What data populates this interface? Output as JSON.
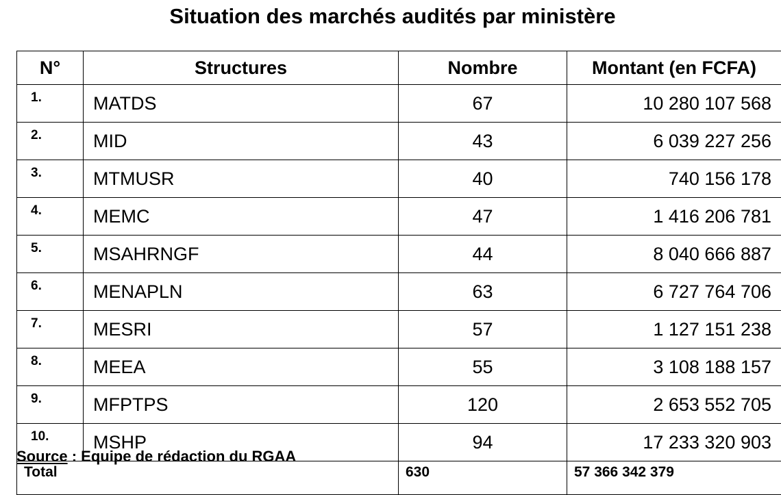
{
  "title": "Situation des marchés audités par ministère",
  "table": {
    "headers": [
      "N°",
      "Structures",
      "Nombre",
      "Montant (en FCFA)"
    ],
    "rows": [
      {
        "n": "1.",
        "structure": "MATDS",
        "nombre": "67",
        "montant": "10 280 107 568"
      },
      {
        "n": "2.",
        "structure": "MID",
        "nombre": "43",
        "montant": "6 039 227 256"
      },
      {
        "n": "3.",
        "structure": "MTMUSR",
        "nombre": "40",
        "montant": "740 156 178"
      },
      {
        "n": "4.",
        "structure": "MEMC",
        "nombre": "47",
        "montant": "1 416 206 781"
      },
      {
        "n": "5.",
        "structure": "MSAHRNGF",
        "nombre": "44",
        "montant": "8 040 666 887"
      },
      {
        "n": "6.",
        "structure": "MENAPLN",
        "nombre": "63",
        "montant": "6 727 764 706"
      },
      {
        "n": "7.",
        "structure": "MESRI",
        "nombre": "57",
        "montant": "1 127 151 238"
      },
      {
        "n": "8.",
        "structure": "MEEA",
        "nombre": "55",
        "montant": "3 108 188 157"
      },
      {
        "n": "9.",
        "structure": "MFPTPS",
        "nombre": "120",
        "montant": "2 653 552 705"
      },
      {
        "n": "10.",
        "structure": "MSHP",
        "nombre": "94",
        "montant": "17 233 320 903"
      }
    ],
    "total": {
      "label": "Total",
      "nombre": "630",
      "montant": "57 366 342 379"
    }
  },
  "source": {
    "label": "Source",
    "text": " : Equipe de rédaction du RGAA"
  }
}
